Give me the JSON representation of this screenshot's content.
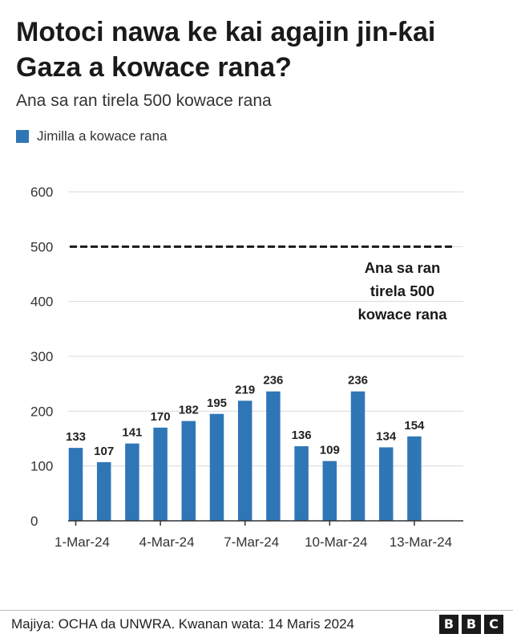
{
  "title": "Motoci nawa ke kai agajin jin-ƙai Gaza a kowace rana?",
  "subtitle": "Ana sa ran tirela 500 kowace rana",
  "source": "Majiya: OCHA da UNWRA. Kwanan wata: 14 Maris 2024",
  "logo": [
    "B",
    "B",
    "C"
  ],
  "colors": {
    "bar": "#2f76b7",
    "grid": "#d9d9d9",
    "axis": "#333333",
    "target": "#1a1a1a"
  },
  "chart_data": {
    "type": "bar",
    "categories": [
      "1-Mar-24",
      "2-Mar-24",
      "3-Mar-24",
      "4-Mar-24",
      "5-Mar-24",
      "6-Mar-24",
      "7-Mar-24",
      "8-Mar-24",
      "9-Mar-24",
      "10-Mar-24",
      "11-Mar-24",
      "12-Mar-24",
      "13-Mar-24"
    ],
    "x_tick_labels": [
      "1-Mar-24",
      "4-Mar-24",
      "7-Mar-24",
      "10-Mar-24",
      "13-Mar-24"
    ],
    "series": [
      {
        "name": "Jimilla a kowace rana",
        "values": [
          133,
          107,
          141,
          170,
          182,
          195,
          219,
          236,
          136,
          109,
          236,
          134,
          154
        ]
      }
    ],
    "y_ticks": [
      0,
      100,
      200,
      300,
      400,
      500,
      600
    ],
    "ylim": [
      0,
      600
    ],
    "target": {
      "value": 500,
      "label": [
        "Ana sa ran",
        "tirela 500",
        "kowace rana"
      ]
    },
    "grid": true,
    "legend": "top-left"
  }
}
